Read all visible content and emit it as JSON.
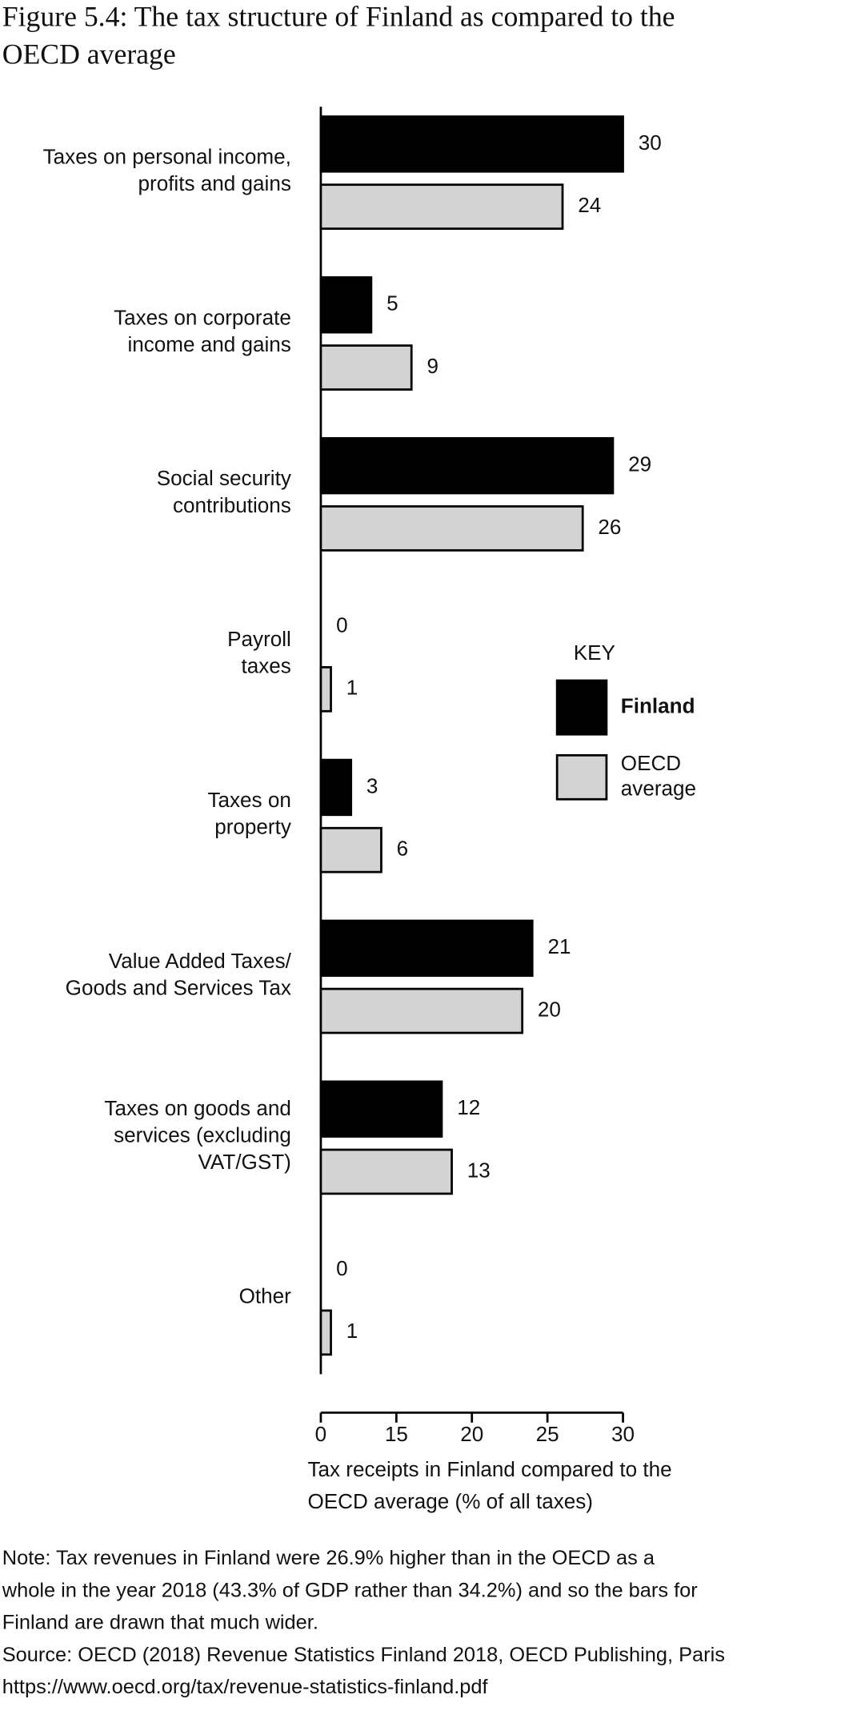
{
  "chart_data": {
    "type": "bar",
    "orientation": "horizontal",
    "title": "Figure 5.4: The tax structure of Finland as compared to the\nOECD average",
    "categories": [
      "Taxes on personal income,\nprofits and gains",
      "Taxes on corporate\nincome and gains",
      "Social security\ncontributions",
      "Payroll\ntaxes",
      "Taxes on\nproperty",
      "Value Added Taxes/\nGoods and Services Tax",
      "Taxes on goods and\nservices (excluding\nVAT/GST)",
      "Other"
    ],
    "series": [
      {
        "name": "Finland",
        "color": "#000000",
        "values": [
          30,
          5,
          29,
          0,
          3,
          21,
          12,
          0
        ]
      },
      {
        "name": "OECD\naverage",
        "color": "#d3d3d3",
        "values": [
          24,
          9,
          26,
          1,
          6,
          20,
          13,
          1
        ]
      }
    ],
    "legend_title": "KEY",
    "legend": "right",
    "x_label": "Tax receipts in Finland compared to the\nOECD average (% of all taxes)",
    "xlim": [
      0,
      30
    ],
    "xticks": [
      0,
      {
        "value": 7.5,
        "label": "15"
      },
      {
        "value": 15,
        "label": "20"
      },
      {
        "value": 22.5,
        "label": "25"
      },
      30
    ],
    "note": "Note: Tax revenues in Finland were 26.9% higher than in the OECD as a\nwhole in the year 2018 (43.3% of GDP rather than 34.2%) and so the bars for\nFinland are drawn that much wider.",
    "source": "Source: OECD (2018) Revenue Statistics Finland 2018, OECD Publishing, Paris\nhttps://www.oecd.org/tax/revenue-statistics-finland.pdf"
  }
}
